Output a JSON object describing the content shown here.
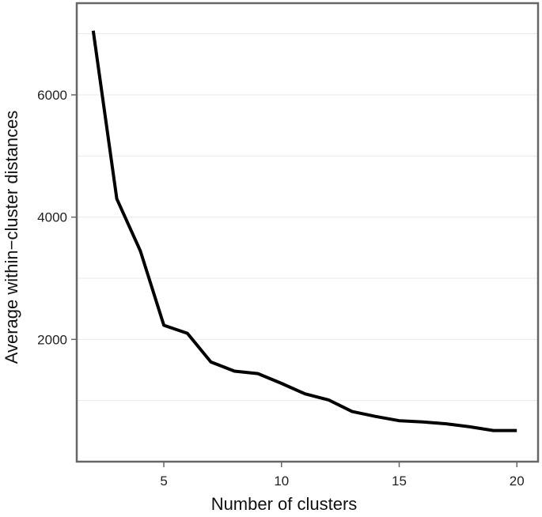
{
  "chart_data": {
    "type": "line",
    "title": "",
    "xlabel": "Number of clusters",
    "ylabel": "Average within−cluster distances",
    "xlim": [
      1.3,
      20.9
    ],
    "ylim": [
      0,
      7500
    ],
    "xticks": [
      5,
      10,
      15,
      20
    ],
    "yticks": [
      2000,
      4000,
      6000
    ],
    "grid": true,
    "legend": "none",
    "series": [
      {
        "x": [
          2,
          3,
          4,
          5,
          6,
          7,
          8,
          9,
          10,
          11,
          12,
          13,
          14,
          15,
          16,
          17,
          18,
          19,
          20
        ],
        "y": [
          7050,
          4300,
          3450,
          2230,
          2100,
          1630,
          1480,
          1440,
          1280,
          1110,
          1010,
          820,
          740,
          670,
          650,
          620,
          570,
          510,
          510
        ]
      }
    ],
    "colors": {
      "line": "#000000",
      "frame": "#666666",
      "grid": "#e8e8e8",
      "background": "#ffffff"
    }
  }
}
